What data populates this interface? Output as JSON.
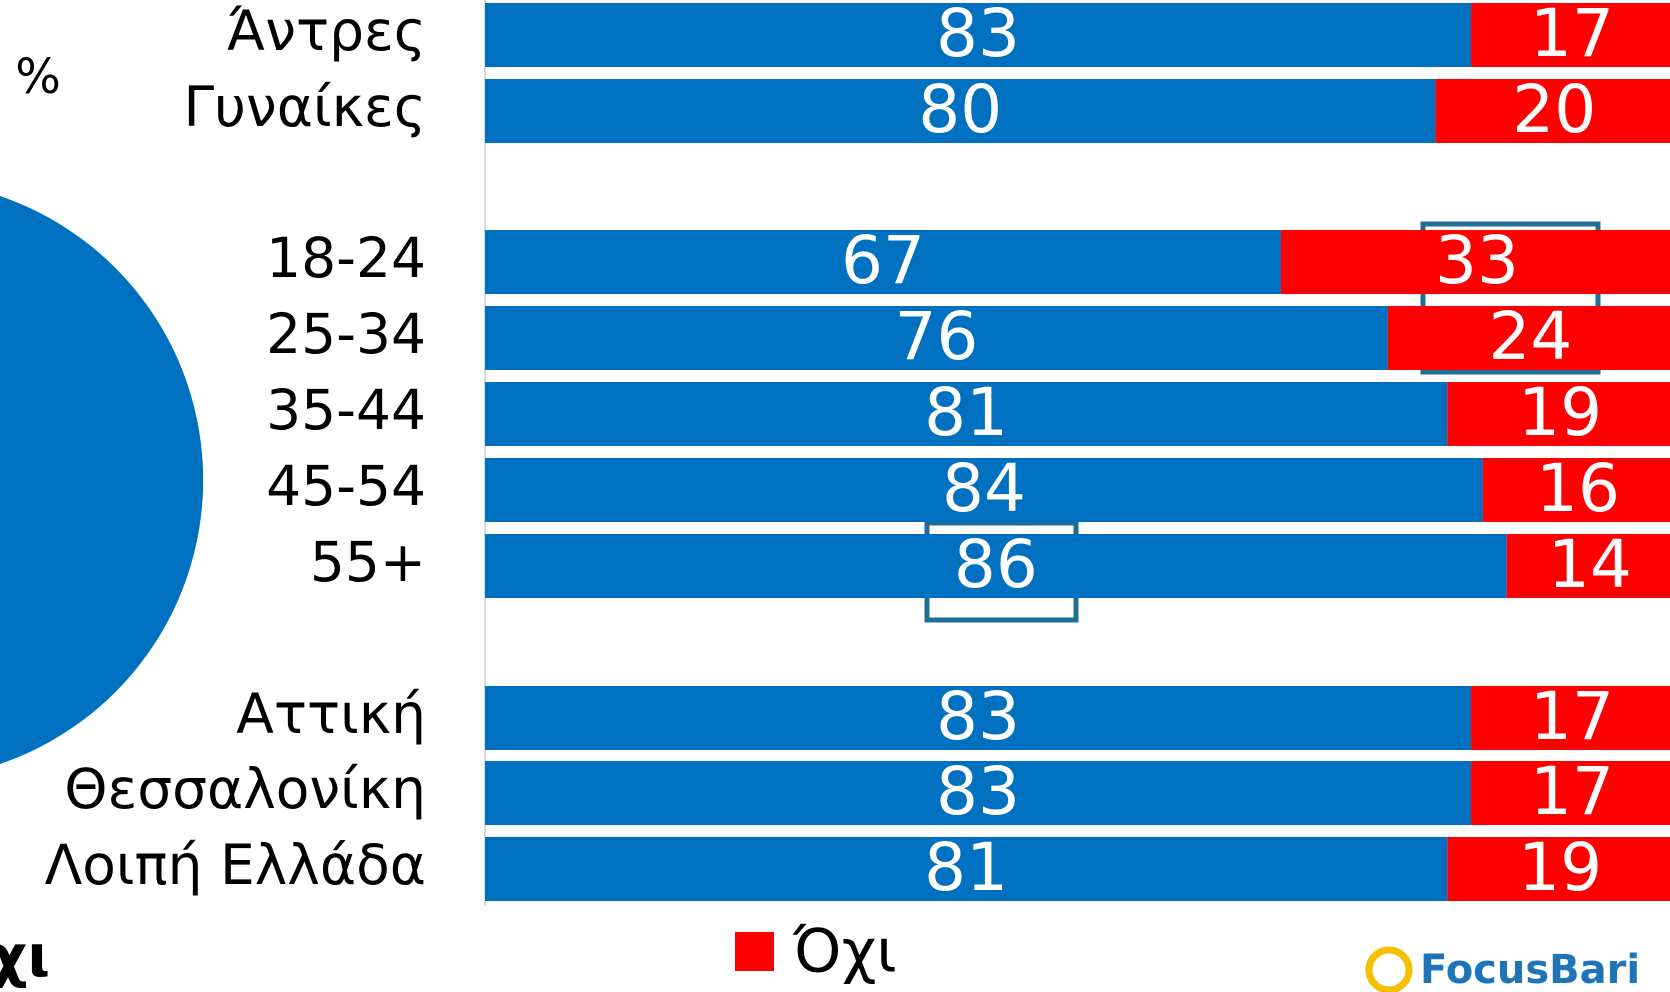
{
  "chart_data": {
    "type": "bar",
    "orientation": "horizontal",
    "stacked": true,
    "unit_label": "%",
    "cropped_label": "χι",
    "categories": [
      "Άντρες",
      "Γυναίκες",
      "18-24",
      "25-34",
      "35-44",
      "45-54",
      "55+",
      "Αττική",
      "Θεσσαλονίκη",
      "Λοιπή Ελλάδα"
    ],
    "series": [
      {
        "color": "#0070c0",
        "values": [
          83,
          80,
          67,
          76,
          81,
          84,
          86,
          83,
          83,
          81
        ]
      },
      {
        "name": "Όχι",
        "color": "#ff0000",
        "values": [
          17,
          20,
          33,
          24,
          19,
          16,
          14,
          17,
          17,
          19
        ]
      }
    ],
    "xlim": [
      0,
      100
    ],
    "logo": "FocusBari"
  }
}
